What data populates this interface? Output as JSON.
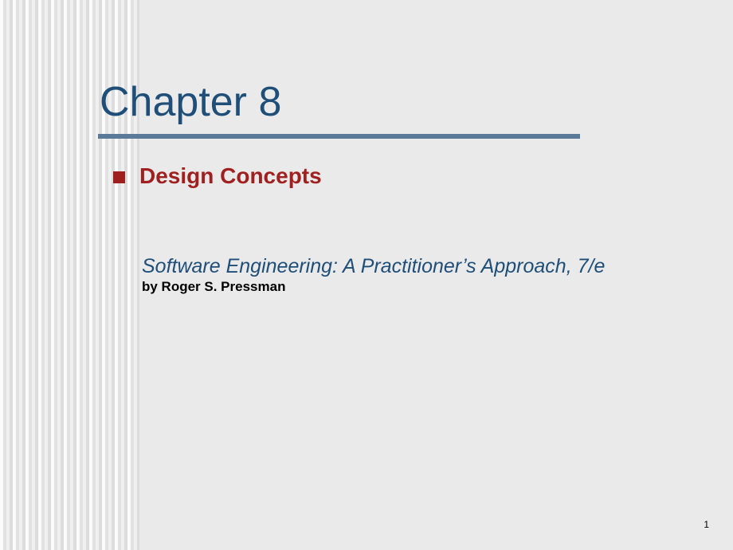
{
  "slide": {
    "title": "Chapter 8",
    "title_color": "#1f4e79",
    "title_fontsize": 52,
    "rule_color": "#5b7a99",
    "rule_width": 605,
    "rule_height": 6,
    "bullet_color": "#a02020",
    "bullet_label": "Design Concepts",
    "bullet_text_color": "#a02020",
    "bullet_fontsize": 28,
    "book_title": "Software Engineering: A Practitioner’s Approach, 7/e",
    "book_title_color": "#1f4e79",
    "book_title_fontsize": 25,
    "author": "by Roger S. Pressman",
    "author_fontsize": 17,
    "page_number": "1",
    "background_color": "#eaeaea",
    "stripe_width": 175
  }
}
